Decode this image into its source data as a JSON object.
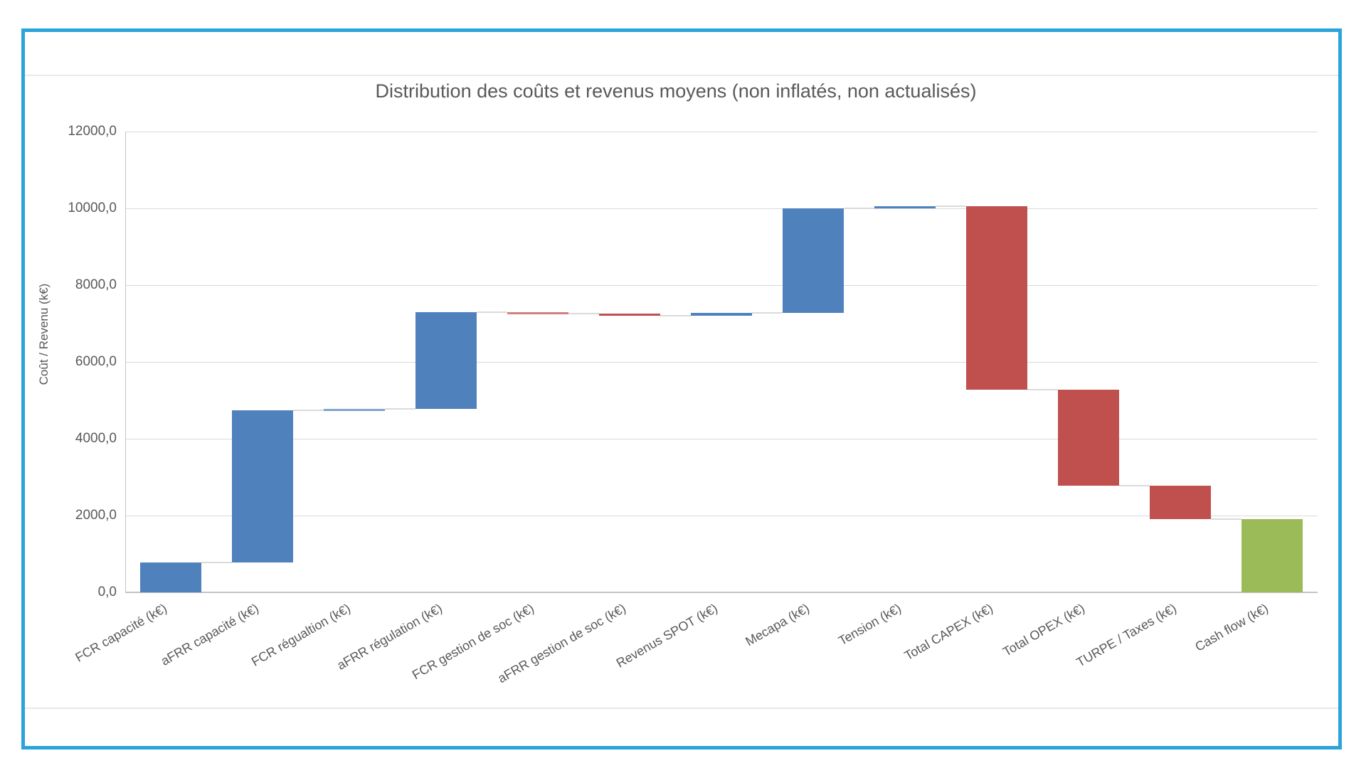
{
  "window": {
    "background_color": "#FFFFFF",
    "frame_border_color": "#2BA4DB"
  },
  "chart_data": {
    "type": "bar",
    "subtype": "waterfall",
    "title": "Distribution des coûts et revenus moyens (non inflatés, non actualisés)",
    "xlabel": "",
    "ylabel": "Coût / Revenu (k€)",
    "ylim": [
      0,
      12000
    ],
    "ytick_interval": 2000,
    "grid": true,
    "legend": false,
    "yticks": [
      {
        "value": 0,
        "label": "0,0"
      },
      {
        "value": 2000,
        "label": "2000,0"
      },
      {
        "value": 4000,
        "label": "4000,0"
      },
      {
        "value": 6000,
        "label": "6000,0"
      },
      {
        "value": 8000,
        "label": "8000,0"
      },
      {
        "value": 10000,
        "label": "10000,0"
      },
      {
        "value": 12000,
        "label": "12000,0"
      }
    ],
    "categories": [
      "FCR capacité (k€)",
      "aFRR capacité (k€)",
      "FCR régualtion (k€)",
      "aFRR régulation (k€)",
      "FCR gestion de soc (k€)",
      "aFRR gestion de soc (k€)",
      "Revenus SPOT (k€)",
      "Mecapa (k€)",
      "Tension (k€)",
      "Total CAPEX (k€)",
      "Total OPEX (k€)",
      "TURPE / Taxes (k€)",
      "Cash flow (k€)"
    ],
    "bars": [
      {
        "category": "FCR capacité (k€)",
        "value": 780,
        "start": 0,
        "end": 780,
        "role": "increase"
      },
      {
        "category": "aFRR capacité (k€)",
        "value": 3970,
        "start": 780,
        "end": 4750,
        "role": "increase"
      },
      {
        "category": "FCR régualtion (k€)",
        "value": 30,
        "start": 4750,
        "end": 4780,
        "role": "increase"
      },
      {
        "category": "aFRR régulation (k€)",
        "value": 2520,
        "start": 4780,
        "end": 7300,
        "role": "increase"
      },
      {
        "category": "FCR gestion de soc (k€)",
        "value": -40,
        "start": 7300,
        "end": 7260,
        "role": "decrease"
      },
      {
        "category": "aFRR gestion de soc (k€)",
        "value": -60,
        "start": 7260,
        "end": 7200,
        "role": "decrease"
      },
      {
        "category": "Revenus SPOT (k€)",
        "value": 80,
        "start": 7200,
        "end": 7280,
        "role": "increase"
      },
      {
        "category": "Mecapa (k€)",
        "value": 2720,
        "start": 7280,
        "end": 10000,
        "role": "increase"
      },
      {
        "category": "Tension (k€)",
        "value": 50,
        "start": 10000,
        "end": 10050,
        "role": "increase"
      },
      {
        "category": "Total CAPEX (k€)",
        "value": -4770,
        "start": 10050,
        "end": 5280,
        "role": "decrease"
      },
      {
        "category": "Total OPEX (k€)",
        "value": -2500,
        "start": 5280,
        "end": 2780,
        "role": "decrease"
      },
      {
        "category": "TURPE / Taxes (k€)",
        "value": -880,
        "start": 2780,
        "end": 1900,
        "role": "decrease"
      },
      {
        "category": "Cash flow (k€)",
        "value": 1900,
        "start": 0,
        "end": 1900,
        "role": "total"
      }
    ],
    "colors": {
      "increase": "#4F81BD",
      "decrease": "#C0504D",
      "total": "#9BBB59",
      "connector": "#DADADA",
      "gridline": "#D9D9D9",
      "axis_line": "#C3C3C3",
      "text": "#595959"
    }
  }
}
